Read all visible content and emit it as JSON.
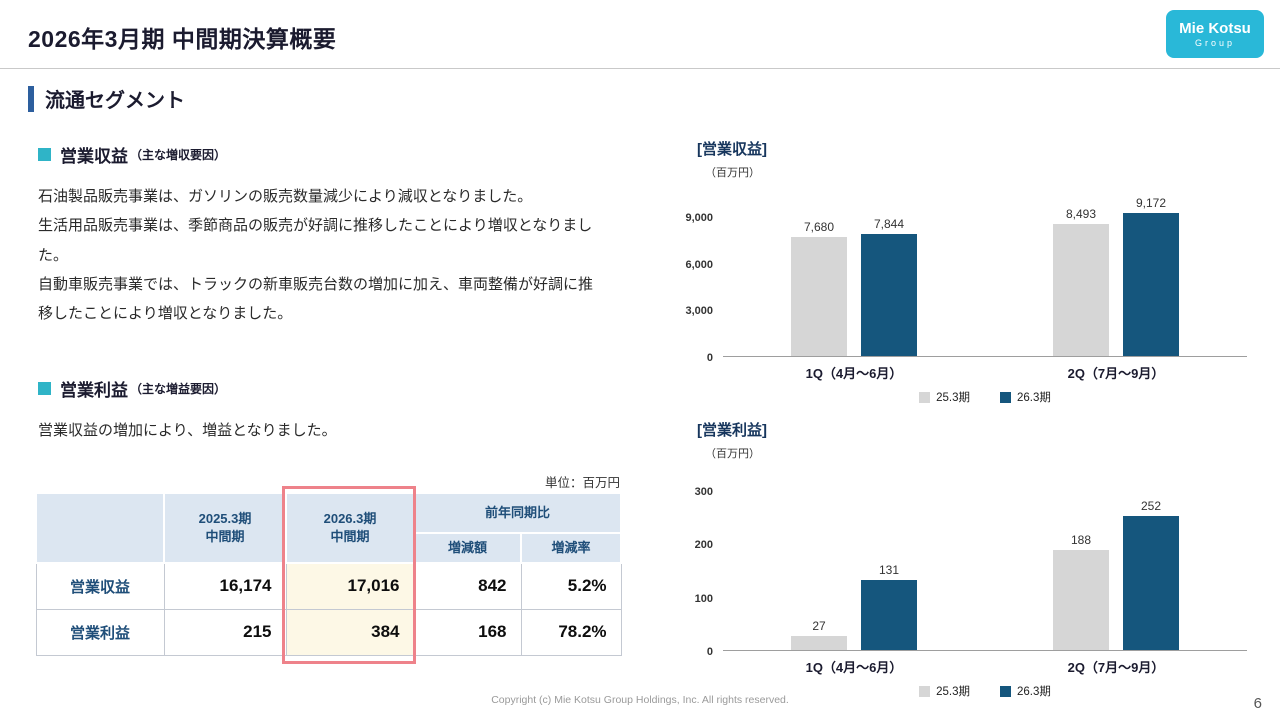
{
  "header": {
    "title": "2026年3月期 中間期決算概要",
    "logo": {
      "line1": "Mie Kotsu",
      "line2": "Group"
    }
  },
  "section_title": "流通セグメント",
  "revenue_block": {
    "heading": "営業収益",
    "heading_note": "（主な増収要因）",
    "paragraphs": [
      "石油製品販売事業は、ガソリンの販売数量減少により減収となりました。",
      "生活用品販売事業は、季節商品の販売が好調に推移したことにより増収となりました。",
      "自動車販売事業では、トラックの新車販売台数の増加に加え、車両整備が好調に推移したことにより増収となりました。"
    ]
  },
  "profit_block": {
    "heading": "営業利益",
    "heading_note": "（主な増益要因）",
    "paragraphs": [
      "営業収益の増加により、増益となりました。"
    ]
  },
  "table": {
    "unit_label": "単位：百万円",
    "headers": {
      "prev": "2025.3期\n中間期",
      "curr": "2026.3期\n中間期",
      "yoy": "前年同期比",
      "diff": "増減額",
      "rate": "増減率"
    },
    "rows": [
      {
        "label": "営業収益",
        "prev": "16,174",
        "curr": "17,016",
        "diff": "842",
        "rate": "5.2%"
      },
      {
        "label": "営業利益",
        "prev": "215",
        "curr": "384",
        "diff": "168",
        "rate": "78.2%"
      }
    ]
  },
  "colors": {
    "brand_cyan": "#29b8d8",
    "accent_blue": "#2d5f9e",
    "teal_square": "#2fb4c7",
    "table_header_bg": "#dce6f1",
    "table_header_text": "#1f4e79",
    "highlight_border": "#ee828a",
    "highlight_fill": "#fdf8e6",
    "bar_prev": "#d6d6d6",
    "bar_curr": "#15567d"
  },
  "chart_data": [
    {
      "type": "bar",
      "title": "[営業収益]",
      "unit_label": "（百万円）",
      "categories": [
        "1Q（4月～6月）",
        "2Q（7月～9月）"
      ],
      "series": [
        {
          "name": "25.3期",
          "color": "#d6d6d6",
          "values": [
            7680,
            8493
          ]
        },
        {
          "name": "26.3期",
          "color": "#15567d",
          "values": [
            7844,
            9172
          ]
        }
      ],
      "yticks": [
        0,
        3000,
        6000,
        9000
      ],
      "ylim": [
        0,
        9000
      ],
      "grid": false,
      "legend_position": "bottom"
    },
    {
      "type": "bar",
      "title": "[営業利益]",
      "unit_label": "（百万円）",
      "categories": [
        "1Q（4月～6月）",
        "2Q（7月～9月）"
      ],
      "series": [
        {
          "name": "25.3期",
          "color": "#d6d6d6",
          "values": [
            27,
            188
          ]
        },
        {
          "name": "26.3期",
          "color": "#15567d",
          "values": [
            131,
            252
          ]
        }
      ],
      "yticks": [
        0,
        100,
        200,
        300
      ],
      "ylim": [
        0,
        300
      ],
      "grid": false,
      "legend_position": "bottom"
    }
  ],
  "footer": {
    "copyright": "Copyright (c) Mie Kotsu Group Holdings, Inc. All rights reserved.",
    "page_number": "6"
  }
}
